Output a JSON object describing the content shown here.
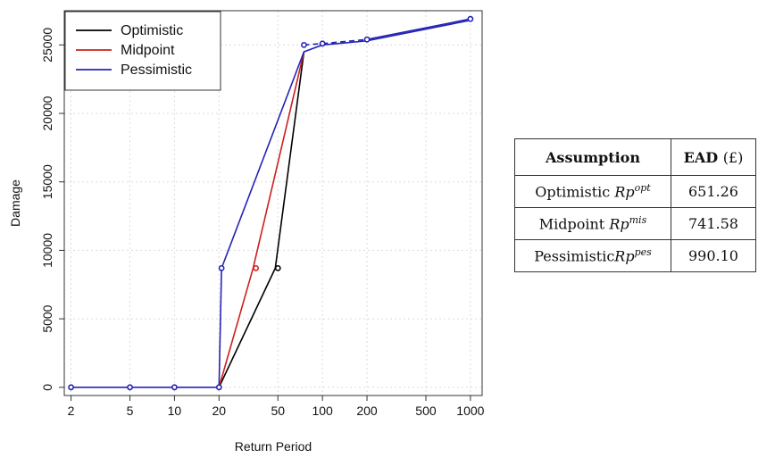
{
  "chart_data": {
    "type": "line",
    "xlabel": "Return Period",
    "ylabel": "Damage",
    "xscale": "log",
    "xlim": [
      1.8,
      1200
    ],
    "ylim": [
      -600,
      27500
    ],
    "xticks": [
      2,
      5,
      10,
      20,
      50,
      100,
      200,
      500,
      1000
    ],
    "xtick_labels": [
      "2",
      "5",
      "10",
      "20",
      "50",
      "100",
      "200",
      "500",
      "1000"
    ],
    "yticks": [
      0,
      5000,
      10000,
      15000,
      20000,
      25000
    ],
    "ytick_labels": [
      "0",
      "5000",
      "10000",
      "15000",
      "20000",
      "25000"
    ],
    "grid": true,
    "legend_position": "top-left",
    "series": [
      {
        "name": "Optimistic",
        "color": "#000000",
        "x": [
          20,
          48,
          75
        ],
        "y": [
          0,
          8700,
          24500
        ]
      },
      {
        "name": "Midpoint",
        "color": "#cc1f1f",
        "x": [
          20,
          34,
          75
        ],
        "y": [
          0,
          8700,
          24500
        ]
      },
      {
        "name": "Pessimistic",
        "color": "#2424b4",
        "x": [
          2,
          5,
          10,
          20,
          20.8,
          75,
          100,
          200,
          1000
        ],
        "y": [
          0,
          0,
          0,
          0,
          8700,
          24500,
          25000,
          25300,
          26800
        ]
      }
    ],
    "points": [
      {
        "x": 2,
        "y": 0,
        "color": "#2424b4"
      },
      {
        "x": 5,
        "y": 0,
        "color": "#2424b4"
      },
      {
        "x": 10,
        "y": 0,
        "color": "#2424b4"
      },
      {
        "x": 20,
        "y": 0,
        "color": "#2424b4"
      },
      {
        "x": 20.8,
        "y": 8700,
        "color": "#2424b4"
      },
      {
        "x": 35.5,
        "y": 8700,
        "color": "#cc1f1f"
      },
      {
        "x": 50,
        "y": 8700,
        "color": "#000000"
      },
      {
        "x": 75,
        "y": 25000,
        "color": "#2424b4"
      },
      {
        "x": 100,
        "y": 25100,
        "color": "#2424b4"
      },
      {
        "x": 200,
        "y": 25400,
        "color": "#2424b4"
      },
      {
        "x": 1000,
        "y": 26900,
        "color": "#2424b4"
      }
    ],
    "tail_segments": [
      {
        "x": [
          75,
          100
        ],
        "y": [
          25000,
          25100
        ],
        "dashed": true
      },
      {
        "x": [
          100,
          200
        ],
        "y": [
          25100,
          25400
        ],
        "dashed": true
      },
      {
        "x": [
          200,
          1000
        ],
        "y": [
          25400,
          26900
        ],
        "dashed": false
      }
    ]
  },
  "table": {
    "header": {
      "assumption": "Assumption",
      "ead": "EAD",
      "ead_unit": "(£)"
    },
    "rows": [
      {
        "label": "Optimistic",
        "symbol": "Rp",
        "sup": "opt",
        "value": "651.26"
      },
      {
        "label": "Midpoint",
        "symbol": "Rp",
        "sup": "mis",
        "value": "741.58"
      },
      {
        "label": "Pessimistic",
        "symbol": "Rp",
        "sup": "pes",
        "value": "990.10"
      }
    ]
  }
}
